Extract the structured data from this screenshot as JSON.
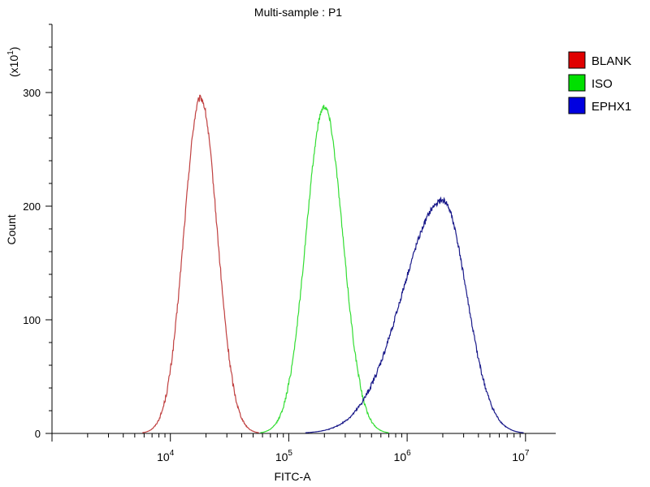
{
  "chart_data": {
    "type": "line",
    "title": "Multi-sample : P1",
    "xlabel": "FITC-A",
    "ylabel": "Count",
    "y_multiplier_label": "(x10",
    "y_multiplier_exp": "1",
    "y_multiplier_close": ")",
    "x_scale": "log",
    "xlim": [
      1000,
      18000000
    ],
    "ylim": [
      0,
      360
    ],
    "x_ticks": [
      {
        "value": 10000,
        "base": "10",
        "exp": "4"
      },
      {
        "value": 100000,
        "base": "10",
        "exp": "5"
      },
      {
        "value": 1000000,
        "base": "10",
        "exp": "6"
      },
      {
        "value": 10000000,
        "base": "10",
        "exp": "7"
      }
    ],
    "y_ticks": [
      {
        "value": 0,
        "label": "0"
      },
      {
        "value": 100,
        "label": "100"
      },
      {
        "value": 200,
        "label": "200"
      },
      {
        "value": 300,
        "label": "300"
      }
    ],
    "legend_position": "right",
    "series": [
      {
        "name": "BLANK",
        "color": "#e00000",
        "stroke": "#c04040",
        "peak_x": 18000,
        "peak_y": 295,
        "sigma_log": 0.14,
        "skew": 1.0,
        "noise": 6
      },
      {
        "name": "ISO",
        "color": "#00e000",
        "stroke": "#33dd33",
        "peak_x": 200000,
        "peak_y": 288,
        "sigma_log": 0.155,
        "skew": 1.0,
        "noise": 5
      },
      {
        "name": "EPHX1",
        "color": "#0000e0",
        "stroke": "#1a1a8a",
        "peak_x": 2000000,
        "peak_y": 205,
        "sigma_log": 0.2,
        "skew": 1.7,
        "noise": 5
      }
    ]
  }
}
